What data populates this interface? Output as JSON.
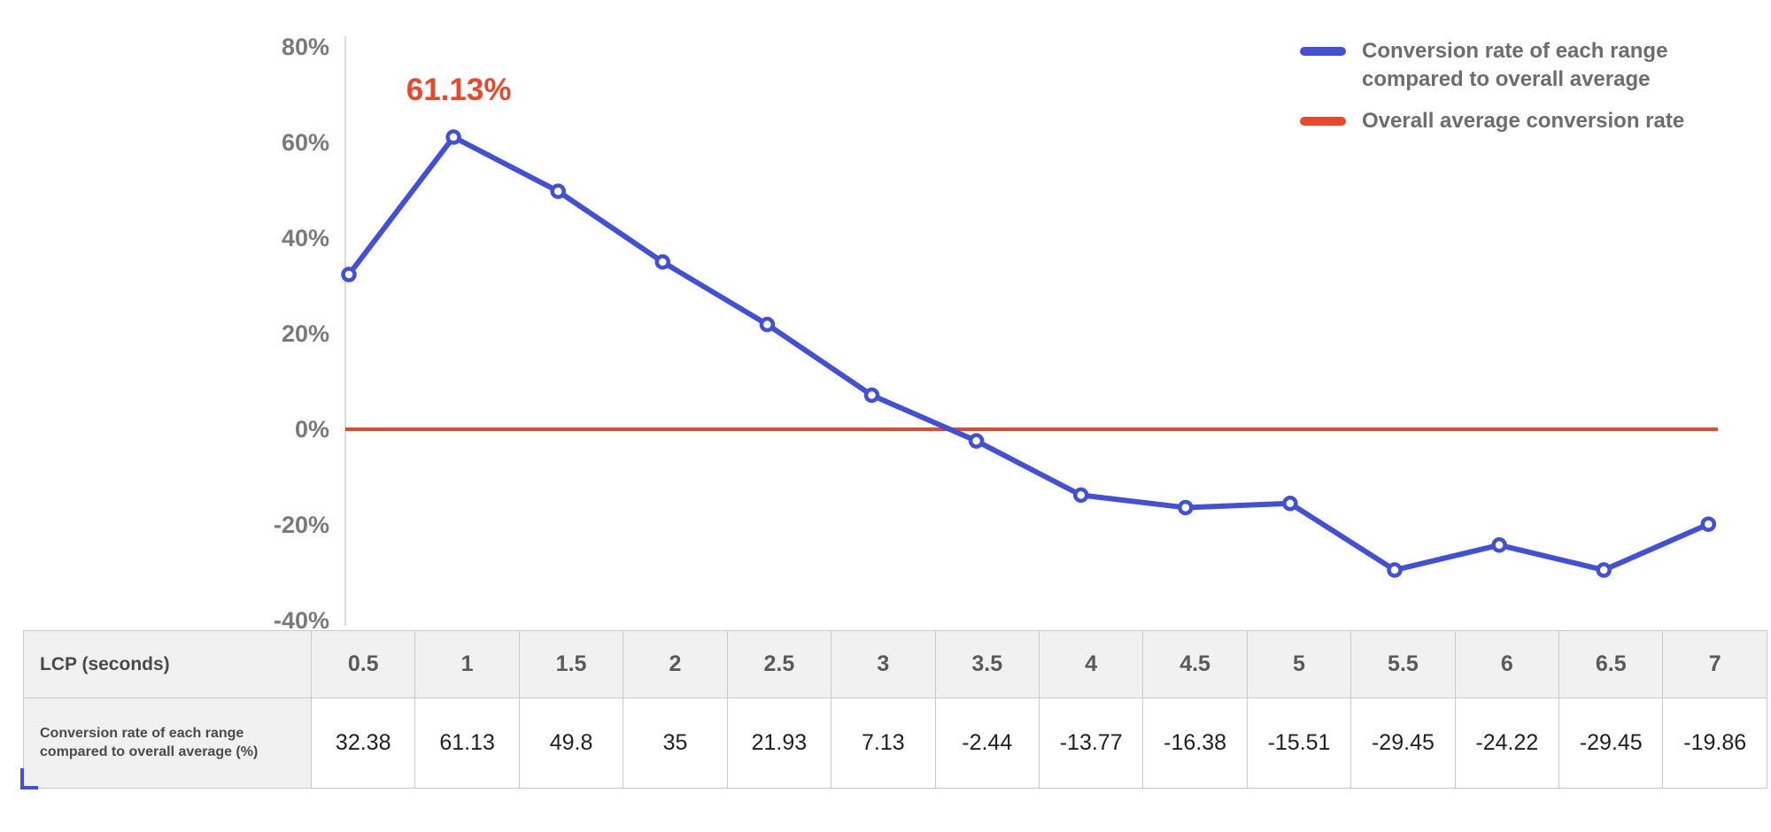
{
  "chart_data": {
    "type": "line",
    "title": "",
    "x_label": "LCP (seconds)",
    "x": [
      "0.5",
      "1",
      "1.5",
      "2",
      "2.5",
      "3",
      "3.5",
      "4",
      "4.5",
      "5",
      "5.5",
      "6",
      "6.5",
      "7"
    ],
    "series": [
      {
        "name": "Conversion rate of each range compared to overall average",
        "values": [
          32.38,
          61.13,
          49.8,
          35,
          21.93,
          7.13,
          -2.44,
          -13.77,
          -16.38,
          -15.51,
          -29.45,
          -24.22,
          -29.45,
          -19.86
        ],
        "color": "#4150d6",
        "style": "line-with-markers"
      },
      {
        "name": "Overall average conversion rate",
        "values": [
          0,
          0,
          0,
          0,
          0,
          0,
          0,
          0,
          0,
          0,
          0,
          0,
          0,
          0
        ],
        "color": "#e8482c",
        "style": "horizontal-line"
      }
    ],
    "ylim": [
      -40,
      80
    ],
    "yticks": [
      80,
      60,
      40,
      20,
      0,
      -20,
      -40
    ],
    "ytick_suffix": "%",
    "grid": false,
    "legend_position": "top-right",
    "annotation": {
      "text": "61.13%",
      "x": "1",
      "value": 61.13,
      "color": "#e8482c"
    }
  },
  "legend": {
    "items": [
      {
        "label": "Conversion rate of each range compared to overall average",
        "color": "#4150d6"
      },
      {
        "label": "Overall average conversion rate",
        "color": "#e8482c"
      }
    ]
  },
  "table": {
    "header_label": "LCP (seconds)",
    "row_label": "Conversion rate of each range compared to overall average (%)",
    "columns": [
      "0.5",
      "1",
      "1.5",
      "2",
      "2.5",
      "3",
      "3.5",
      "4",
      "4.5",
      "5",
      "5.5",
      "6",
      "6.5",
      "7"
    ],
    "values": [
      "32.38",
      "61.13",
      "49.8",
      "35",
      "21.93",
      "7.13",
      "-2.44",
      "-13.77",
      "-16.38",
      "-15.51",
      "-29.45",
      "-24.22",
      "-29.45",
      "-19.86"
    ]
  },
  "colors": {
    "series_line": "#4150d6",
    "average_line": "#e8482c",
    "annotation_text": "#e8482c",
    "axis_text": "#7a7a7a",
    "legend_text": "#6d6d6d",
    "axis_line": "#dcdcdc",
    "table_header_bg": "#f1f1f1",
    "table_border": "#c9c9c9"
  }
}
